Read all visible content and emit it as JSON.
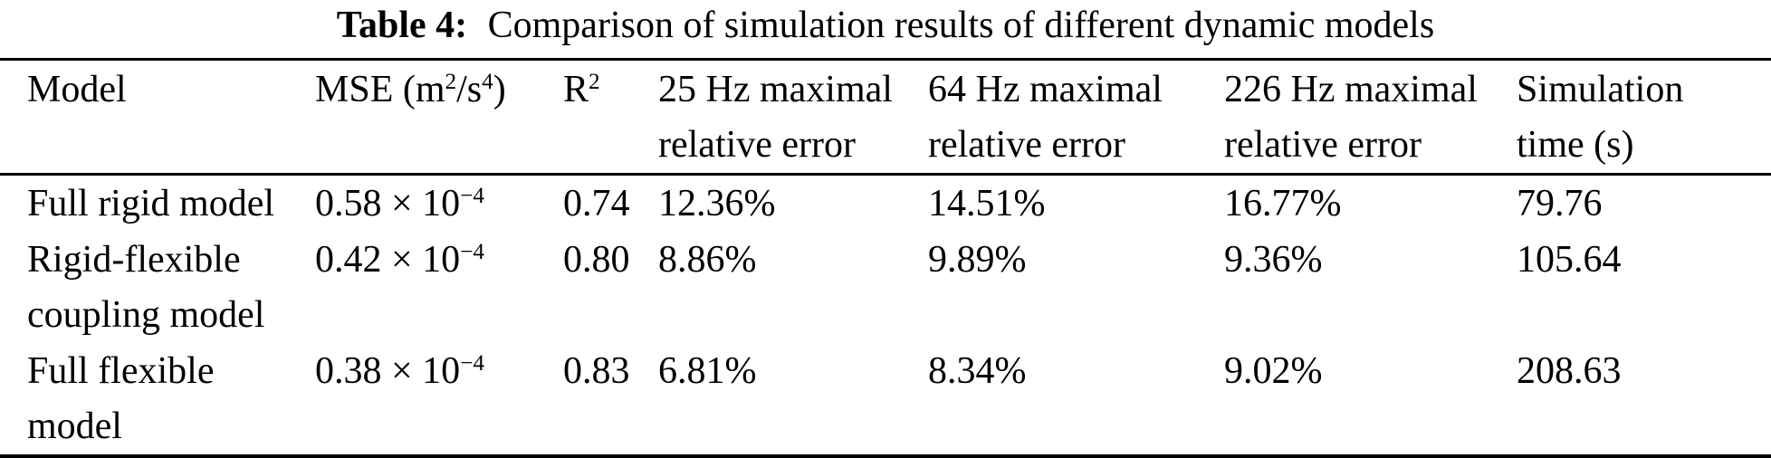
{
  "caption": {
    "label": "Table 4:",
    "text": "Comparison of simulation results of different dynamic models"
  },
  "colors": {
    "text": "#000000",
    "background": "#ffffff",
    "rule": "#000000"
  },
  "table": {
    "headers": [
      "Model",
      "MSE (m^{2}/s^{4})",
      "R^{2}",
      "25 Hz maximal\nrelative error",
      "64 Hz maximal\nrelative error",
      "226 Hz maximal\nrelative error",
      "Simulation\ntime (s)"
    ],
    "rows": [
      {
        "cells": [
          "Full rigid model",
          "0.58 × 10^{−4}",
          "0.74",
          "12.36%",
          "14.51%",
          "16.77%",
          "79.76"
        ]
      },
      {
        "cells": [
          "Rigid-flexible\ncoupling model",
          "0.42 × 10^{−4}",
          "0.80",
          "8.86%",
          "9.89%",
          "9.36%",
          "105.64"
        ]
      },
      {
        "cells": [
          "Full flexible\nmodel",
          "0.38 × 10^{−4}",
          "0.83",
          "6.81%",
          "8.34%",
          "9.02%",
          "208.63"
        ]
      }
    ]
  }
}
